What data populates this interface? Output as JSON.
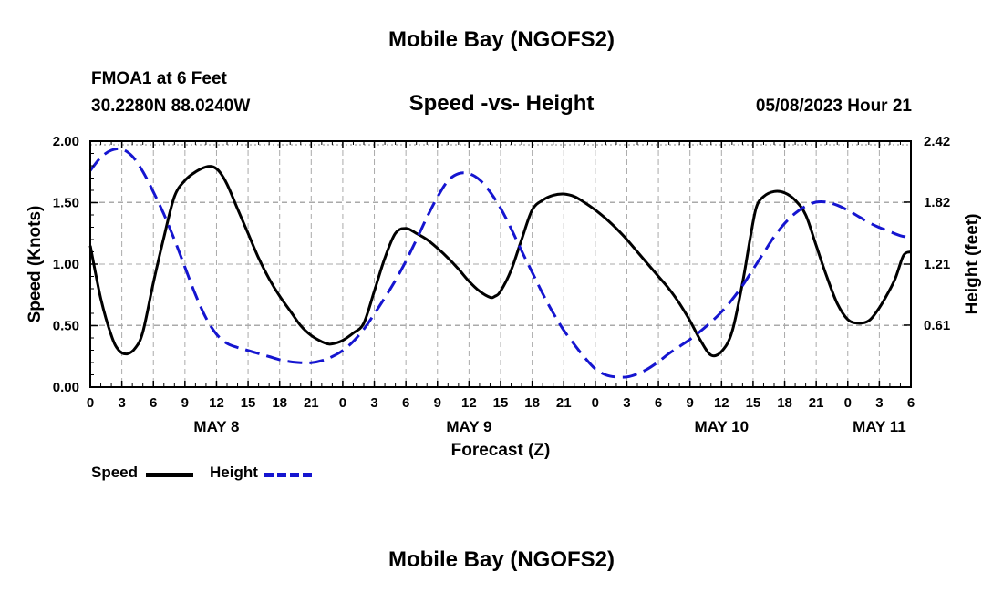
{
  "chart_data": {
    "type": "line",
    "title": "Mobile Bay (NGOFS2)",
    "station_label": "FMOA1 at 6 Feet",
    "coordinates": "30.2280N  88.0240W",
    "plot_title": "Speed -vs- Height",
    "timestamp": "05/08/2023 Hour 21",
    "footer_title": "Mobile Bay (NGOFS2)",
    "xlabel": "Forecast (Z)",
    "ylabel": "Speed (Knots)",
    "ylabel_right": "Height (feet)",
    "xlim": [
      0,
      78
    ],
    "ylim": [
      0,
      2.0
    ],
    "ylim_right": [
      0,
      2.42
    ],
    "grid": true,
    "x_tick_labels": [
      "0",
      "3",
      "6",
      "9",
      "12",
      "15",
      "18",
      "21",
      "0",
      "3",
      "6",
      "9",
      "12",
      "15",
      "18",
      "21",
      "0",
      "3",
      "6",
      "9",
      "12",
      "15",
      "18",
      "21",
      "0",
      "3",
      "6"
    ],
    "date_labels": [
      {
        "x": 12,
        "label": "MAY 8"
      },
      {
        "x": 36,
        "label": "MAY 9"
      },
      {
        "x": 60,
        "label": "MAY 10"
      },
      {
        "x": 75,
        "label": "MAY 11"
      }
    ],
    "y_tick_labels": [
      "0.00",
      "0.50",
      "1.00",
      "1.50",
      "2.00"
    ],
    "y_tick_values": [
      0,
      0.5,
      1.0,
      1.5,
      2.0
    ],
    "y_right_tick_labels": [
      "0.61",
      "1.21",
      "1.82",
      "2.42"
    ],
    "y_right_tick_values": [
      0.61,
      1.21,
      1.82,
      2.42
    ],
    "series": [
      {
        "name": "Speed",
        "color": "#000000",
        "style": "solid",
        "axis": "left",
        "x": [
          0,
          1,
          2,
          2.7,
          3.5,
          4.3,
          5,
          6,
          7,
          8,
          9,
          10,
          11,
          11.7,
          12.3,
          13,
          14,
          15,
          16,
          17,
          18,
          19,
          20,
          21,
          22,
          22.7,
          23.4,
          24,
          25,
          26,
          27,
          28,
          29,
          30,
          31,
          32,
          33,
          34,
          35,
          36,
          37,
          38,
          38.5,
          39,
          40,
          41,
          42,
          43,
          44,
          45,
          46,
          47,
          48,
          49,
          50,
          51,
          52,
          53,
          54,
          55,
          56,
          57,
          58,
          59,
          60,
          61,
          62,
          62.7,
          63.3,
          64,
          65,
          66,
          67,
          68,
          69,
          70,
          71,
          72,
          73,
          74,
          74.8,
          75.6,
          76.5,
          77.3,
          78
        ],
        "values": [
          1.15,
          0.72,
          0.42,
          0.3,
          0.27,
          0.32,
          0.45,
          0.85,
          1.22,
          1.55,
          1.68,
          1.75,
          1.79,
          1.79,
          1.75,
          1.65,
          1.45,
          1.25,
          1.05,
          0.88,
          0.74,
          0.62,
          0.5,
          0.42,
          0.37,
          0.35,
          0.36,
          0.38,
          0.44,
          0.52,
          0.78,
          1.05,
          1.25,
          1.29,
          1.25,
          1.2,
          1.13,
          1.05,
          0.96,
          0.86,
          0.78,
          0.73,
          0.74,
          0.78,
          0.95,
          1.2,
          1.44,
          1.52,
          1.56,
          1.57,
          1.55,
          1.5,
          1.44,
          1.37,
          1.29,
          1.2,
          1.1,
          1.0,
          0.9,
          0.8,
          0.68,
          0.54,
          0.38,
          0.26,
          0.29,
          0.45,
          0.85,
          1.2,
          1.46,
          1.55,
          1.59,
          1.58,
          1.52,
          1.4,
          1.15,
          0.9,
          0.68,
          0.55,
          0.52,
          0.54,
          0.62,
          0.73,
          0.88,
          1.07,
          1.1
        ],
        "note": "Values for Speed in knots (left axis)"
      },
      {
        "name": "Height",
        "color": "#1515d0",
        "style": "dashed",
        "axis": "right",
        "x": [
          0,
          1,
          2,
          3,
          4,
          5,
          6,
          7,
          8,
          9,
          10,
          11,
          12,
          13,
          14,
          15,
          16,
          17,
          18,
          19,
          20,
          21,
          22,
          23,
          24,
          25,
          26,
          27,
          28,
          29,
          30,
          31,
          32,
          33,
          34,
          35,
          36,
          37,
          38,
          39,
          40,
          41,
          42,
          43,
          44,
          45,
          46,
          47,
          48,
          49,
          50,
          51,
          52,
          53,
          54,
          55,
          56,
          57,
          58,
          59,
          60,
          61,
          62,
          63,
          64,
          65,
          66,
          67,
          68,
          69,
          70,
          71,
          72,
          73,
          74,
          75,
          76,
          77,
          78
        ],
        "values": [
          2.13,
          2.26,
          2.33,
          2.34,
          2.27,
          2.12,
          1.92,
          1.7,
          1.45,
          1.18,
          0.91,
          0.68,
          0.52,
          0.43,
          0.39,
          0.36,
          0.33,
          0.3,
          0.27,
          0.25,
          0.24,
          0.24,
          0.26,
          0.3,
          0.36,
          0.45,
          0.57,
          0.72,
          0.88,
          1.05,
          1.24,
          1.45,
          1.67,
          1.87,
          2.03,
          2.1,
          2.1,
          2.04,
          1.92,
          1.76,
          1.56,
          1.34,
          1.13,
          0.92,
          0.73,
          0.56,
          0.42,
          0.29,
          0.18,
          0.12,
          0.1,
          0.1,
          0.13,
          0.18,
          0.25,
          0.33,
          0.4,
          0.47,
          0.55,
          0.64,
          0.74,
          0.86,
          1.0,
          1.16,
          1.32,
          1.48,
          1.61,
          1.71,
          1.78,
          1.82,
          1.82,
          1.79,
          1.74,
          1.68,
          1.62,
          1.57,
          1.53,
          1.49,
          1.47
        ],
        "note": "Values for Height in feet (right axis)"
      }
    ]
  },
  "legend": {
    "speed_label": "Speed",
    "height_label": "Height",
    "speed_color": "#000000",
    "height_color": "#1515d0"
  }
}
